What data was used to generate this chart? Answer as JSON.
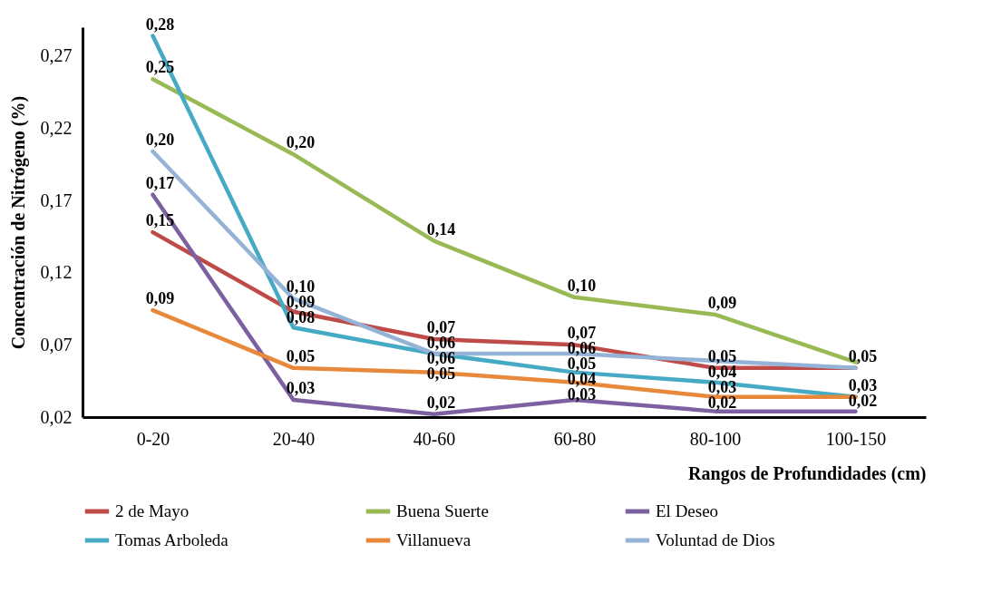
{
  "chart_data": {
    "type": "line",
    "xlabel": "Rangos de Profundidades (cm)",
    "ylabel": "Concentración de Nitrógeno (%)",
    "categories": [
      "0-20",
      "20-40",
      "40-60",
      "60-80",
      "80-100",
      "100-150"
    ],
    "series": [
      {
        "name": "2 de Mayo",
        "color": "#be4b48",
        "values": [
          0.148,
          0.093,
          0.074,
          0.07,
          0.054,
          0.054
        ],
        "value_labels": [
          "0,15",
          "0,09",
          "0,07",
          "0,07",
          "0,05",
          "0,05"
        ]
      },
      {
        "name": "Buena Suerte",
        "color": "#98b954",
        "values": [
          0.254,
          0.202,
          0.142,
          0.103,
          0.091,
          0.058
        ],
        "value_labels": [
          "0,25",
          "0,20",
          "0,14",
          "0,10",
          "0,09",
          null
        ]
      },
      {
        "name": "El Deseo",
        "color": "#7d60a0",
        "values": [
          0.174,
          0.032,
          0.022,
          0.032,
          0.024,
          0.024
        ],
        "value_labels": [
          "0,17",
          "0,03",
          "0,02",
          "0,03",
          "0,02",
          "0,02"
        ]
      },
      {
        "name": "Tomas Arboleda",
        "color": "#46aac5",
        "values": [
          0.284,
          0.082,
          0.064,
          0.051,
          0.044,
          0.034
        ],
        "value_labels": [
          "0,28",
          "0,08",
          "0,06",
          "0,05",
          "0,04",
          "0,03"
        ]
      },
      {
        "name": "Villanueva",
        "color": "#e8883a",
        "values": [
          0.094,
          0.054,
          0.051,
          0.044,
          0.034,
          0.034
        ],
        "value_labels": [
          "0,09",
          "0,05",
          "0,05",
          "0,04",
          "0,03",
          null
        ]
      },
      {
        "name": "Voluntad de Dios",
        "color": "#95b3d7",
        "values": [
          0.204,
          0.102,
          0.064,
          0.064,
          0.059,
          0.054
        ],
        "value_labels": [
          "0,20",
          "0,10",
          "0,06",
          "0,06",
          null,
          null
        ]
      }
    ],
    "ylim": [
      0.02,
      0.29
    ],
    "yticks": [
      {
        "value": 0.02,
        "label": "0,02"
      },
      {
        "value": 0.07,
        "label": "0,07"
      },
      {
        "value": 0.12,
        "label": "0,12"
      },
      {
        "value": 0.17,
        "label": "0,17"
      },
      {
        "value": 0.22,
        "label": "0,22"
      },
      {
        "value": 0.27,
        "label": "0,27"
      }
    ],
    "grid": false,
    "legend": "bottom",
    "marker": "none",
    "line_style": "solid"
  }
}
